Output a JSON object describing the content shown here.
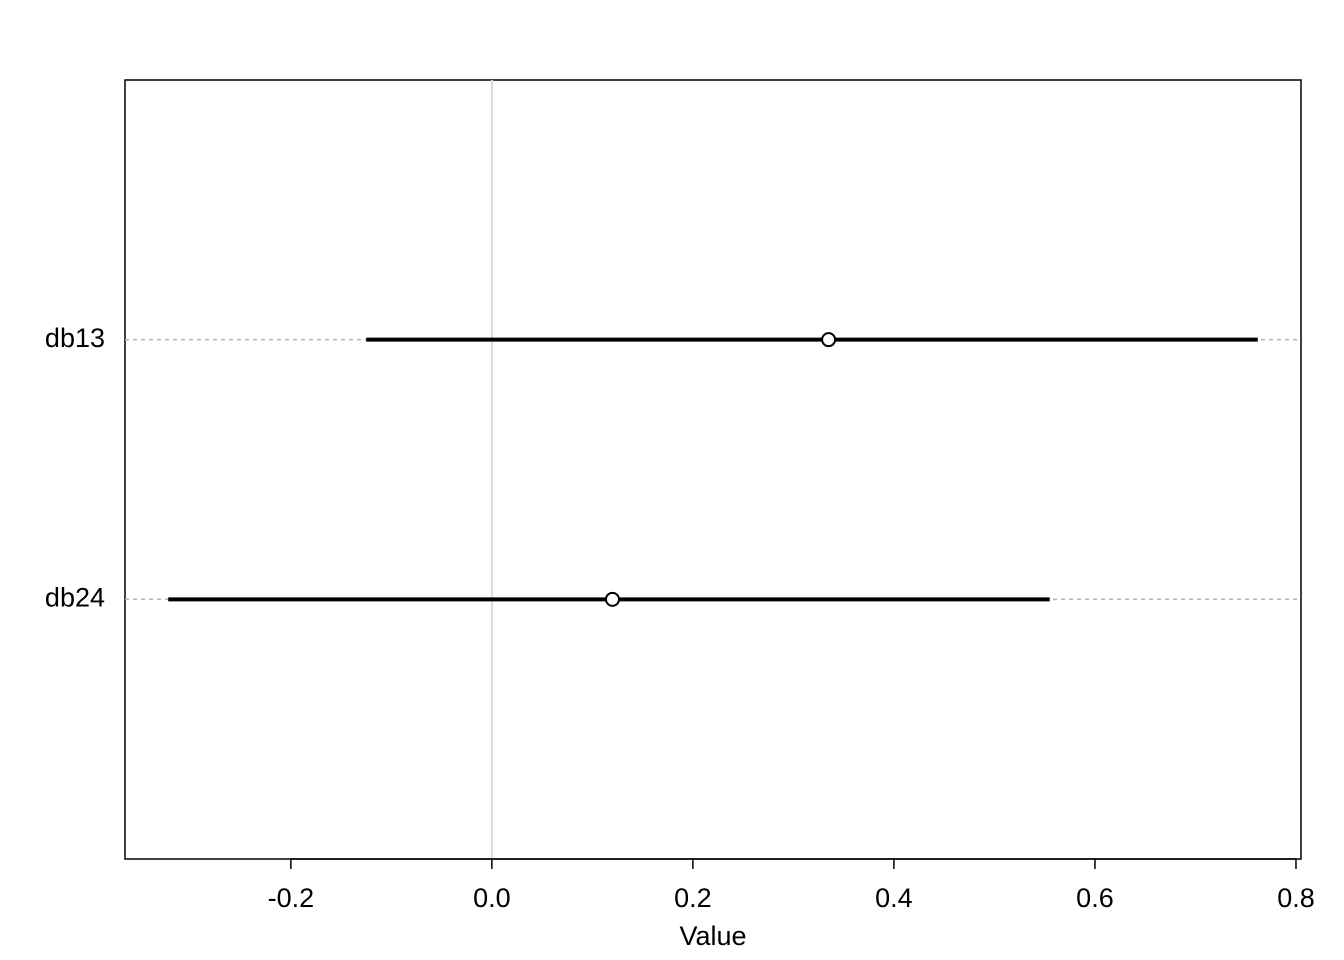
{
  "chart_data": {
    "type": "interval",
    "categories": [
      "db13",
      "db24"
    ],
    "values": [
      0.335,
      0.12
    ],
    "lower": [
      -0.125,
      -0.322
    ],
    "upper": [
      0.762,
      0.555
    ],
    "xlabel": "Value",
    "xlim": [
      -0.365,
      0.805
    ],
    "xticks": [
      -0.2,
      {
        "value": 0,
        "label": "0.0"
      },
      0.2,
      0.4,
      0.6,
      0.8
    ],
    "refline": 0,
    "color": "#000000"
  }
}
